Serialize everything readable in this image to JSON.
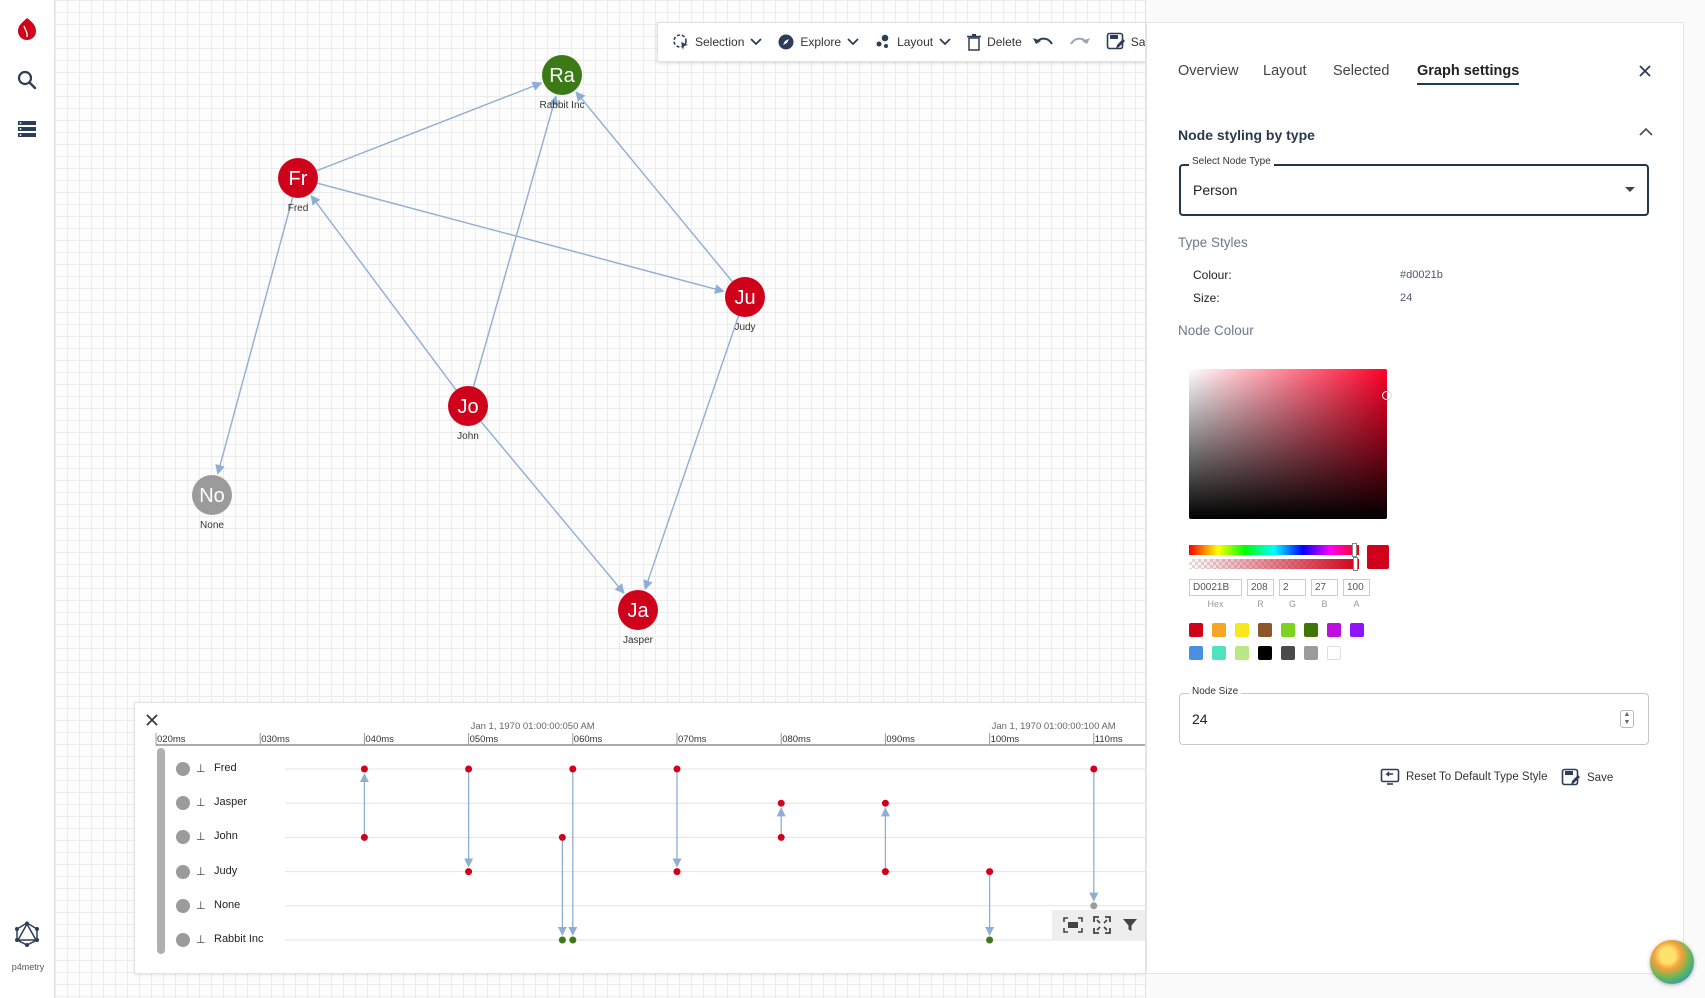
{
  "app": {
    "brand_text": "p4metry",
    "brand_color": "#d0021b"
  },
  "toolbar": {
    "selection_label": "Selection",
    "explore_label": "Explore",
    "layout_label": "Layout",
    "delete_label": "Delete",
    "save_as_label": "Save As"
  },
  "graph": {
    "nodes": [
      {
        "id": "ra",
        "initials": "Ra",
        "label": "Rabbit Inc",
        "color": "#3b7a16"
      },
      {
        "id": "fr",
        "initials": "Fr",
        "label": "Fred",
        "color": "#d0021b"
      },
      {
        "id": "ju",
        "initials": "Ju",
        "label": "Judy",
        "color": "#d0021b"
      },
      {
        "id": "jo",
        "initials": "Jo",
        "label": "John",
        "color": "#d0021b"
      },
      {
        "id": "no",
        "initials": "No",
        "label": "None",
        "color": "#9b9b9b"
      },
      {
        "id": "ja",
        "initials": "Ja",
        "label": "Jasper",
        "color": "#d0021b"
      }
    ],
    "edges": [
      {
        "from": "fr",
        "to": "ra"
      },
      {
        "from": "fr",
        "to": "ju"
      },
      {
        "from": "fr",
        "to": "no"
      },
      {
        "from": "jo",
        "to": "fr"
      },
      {
        "from": "jo",
        "to": "ra"
      },
      {
        "from": "jo",
        "to": "ja"
      },
      {
        "from": "ju",
        "to": "ra"
      },
      {
        "from": "ju",
        "to": "ja"
      }
    ],
    "edge_color": "#8faed4"
  },
  "timeline": {
    "date_labels": [
      "Jan 1, 1970 01:00:00:050 AM",
      "Jan 1, 1970 01:00:00:100 AM"
    ],
    "ticks": [
      "020ms",
      "030ms",
      "040ms",
      "050ms",
      "060ms",
      "070ms",
      "080ms",
      "090ms",
      "100ms",
      "110ms"
    ],
    "rows": [
      "Fred",
      "Jasper",
      "John",
      "Judy",
      "None",
      "Rabbit Inc"
    ],
    "events": [
      {
        "t": 40,
        "from": "John",
        "to": "Fred"
      },
      {
        "t": 50,
        "from": "Fred",
        "to": "Judy"
      },
      {
        "t": 60,
        "from": "Fred",
        "to": "Rabbit Inc"
      },
      {
        "t": 59,
        "from": "John",
        "to": "Rabbit Inc"
      },
      {
        "t": 70,
        "from": "Fred",
        "to": "Judy"
      },
      {
        "t": 80,
        "from": "John",
        "to": "Jasper"
      },
      {
        "t": 90,
        "from": "Judy",
        "to": "Jasper"
      },
      {
        "t": 100,
        "from": "Judy",
        "to": "Rabbit Inc"
      },
      {
        "t": 110,
        "from": "Fred",
        "to": "None"
      }
    ]
  },
  "panel": {
    "tabs": [
      {
        "label": "Overview",
        "active": false
      },
      {
        "label": "Layout",
        "active": false
      },
      {
        "label": "Selected",
        "active": false
      },
      {
        "label": "Graph settings",
        "active": true
      }
    ],
    "section_title": "Node styling by type",
    "select_label": "Select Node Type",
    "select_value": "Person",
    "type_styles_title": "Type Styles",
    "colour_key": "Colour:",
    "colour_value": "#d0021b",
    "size_key": "Size:",
    "size_value": "24",
    "node_colour_title": "Node Colour",
    "picker": {
      "hex": "D0021B",
      "r": "208",
      "g": "2",
      "b": "27",
      "a": "100",
      "hex_label": "Hex",
      "r_label": "R",
      "g_label": "G",
      "b_label": "B",
      "a_label": "A",
      "swatches": [
        "#d0021b",
        "#f5a623",
        "#f8e71c",
        "#8b572a",
        "#7ed321",
        "#417505",
        "#bd10e0",
        "#9013fe",
        "#4a90e2",
        "#50e3c2",
        "#b8e986",
        "#000000",
        "#4a4a4a",
        "#9b9b9b",
        "#ffffff"
      ]
    },
    "node_size_label": "Node Size",
    "node_size_value": "24",
    "reset_label": "Reset To Default Type Style",
    "save_label": "Save"
  }
}
